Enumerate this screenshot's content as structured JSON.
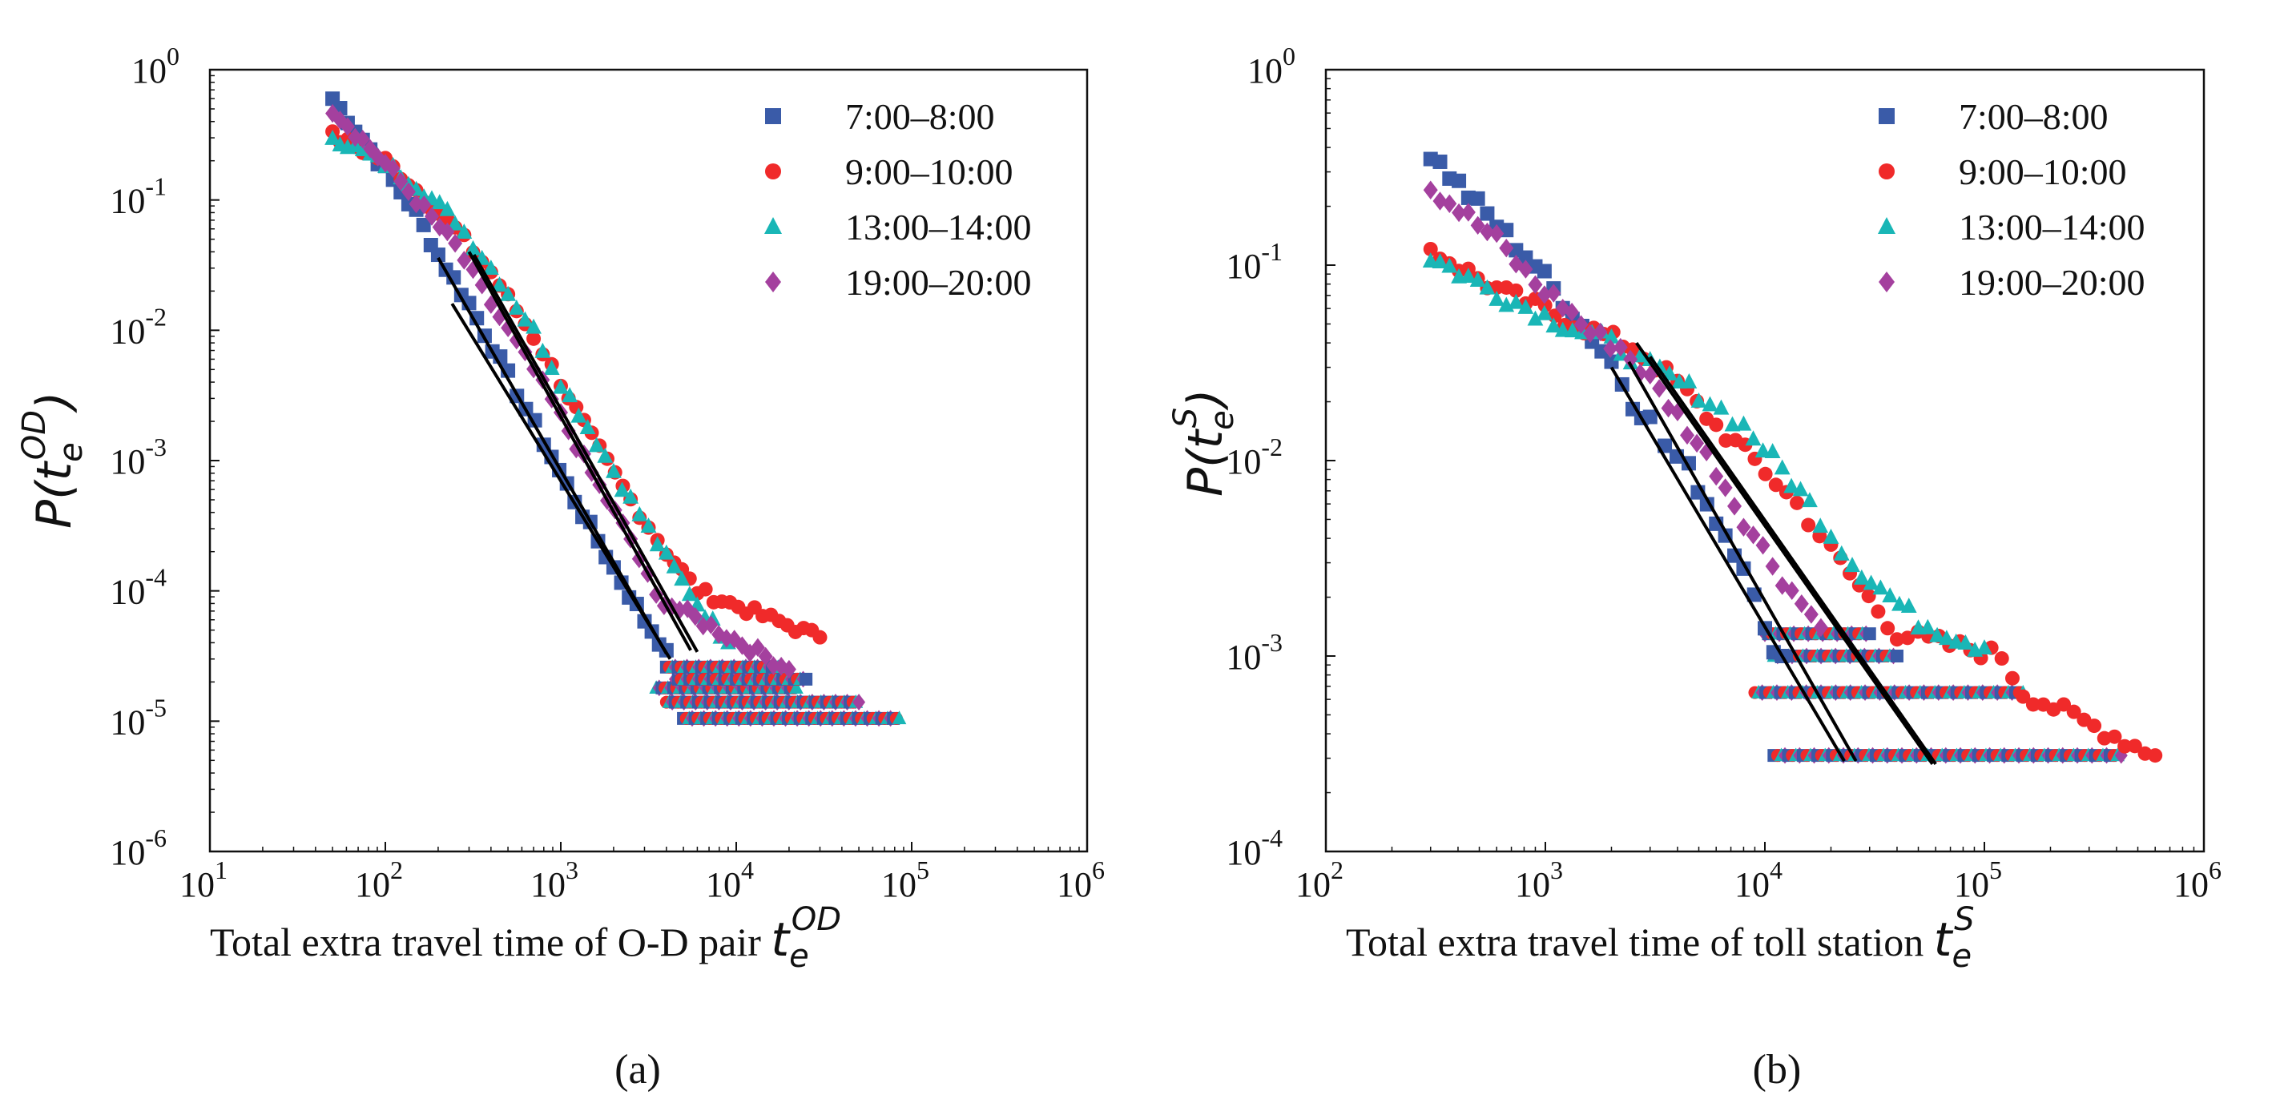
{
  "figure": {
    "caption_a": "(a)",
    "caption_b": "(b)"
  },
  "chart_data": [
    {
      "id": "a",
      "type": "scatter",
      "log_x": true,
      "log_y": true,
      "xlim_exp": [
        1,
        6
      ],
      "ylim_exp": [
        -6,
        0
      ],
      "x_tick_exponents": [
        "1",
        "2",
        "3",
        "4",
        "5",
        "6"
      ],
      "y_tick_exponents": [
        "0",
        "-1",
        "-2",
        "-3",
        "-4",
        "-5",
        "-6"
      ],
      "tick_base": "10",
      "xlabel_text": "Total extra travel time of O-D pair ",
      "xlabel_symbol": "t",
      "xlabel_sub": "e",
      "xlabel_sup": "OD",
      "ylabel_symbol": "P(t",
      "ylabel_sub": "e",
      "ylabel_sup": "OD",
      "ylabel_close": ")",
      "legend_position": "top-right",
      "series": [
        {
          "name": "7:00–8:00",
          "color": "#3a5ba8",
          "marker": "square",
          "points": [
            [
              50,
              0.6
            ],
            [
              100,
              0.17
            ],
            [
              150,
              0.08
            ],
            [
              200,
              0.038
            ],
            [
              300,
              0.016
            ],
            [
              500,
              0.0045
            ],
            [
              800,
              0.0014
            ],
            [
              1200,
              0.0005
            ],
            [
              2000,
              0.00015
            ],
            [
              3000,
              6e-05
            ],
            [
              4000,
              3.5e-05
            ]
          ],
          "fit": {
            "x1": 200,
            "y1": 0.036,
            "x2": 4000,
            "y2": 3.3e-05
          }
        },
        {
          "name": "9:00–10:00",
          "color": "#f02a2a",
          "marker": "circle",
          "points": [
            [
              50,
              0.31
            ],
            [
              100,
              0.2
            ],
            [
              150,
              0.12
            ],
            [
              250,
              0.06
            ],
            [
              400,
              0.028
            ],
            [
              700,
              0.009
            ],
            [
              1000,
              0.004
            ],
            [
              1500,
              0.0015
            ],
            [
              2500,
              0.0005
            ],
            [
              4000,
              0.0002
            ],
            [
              6000,
              0.0001
            ],
            [
              30000,
              4.4e-05
            ]
          ],
          "fit": {
            "x1": 320,
            "y1": 0.038,
            "x2": 6000,
            "y2": 3.4e-05
          }
        },
        {
          "name": "13:00–14:00",
          "color": "#19b6b6",
          "marker": "triangle",
          "points": [
            [
              50,
              0.31
            ],
            [
              100,
              0.19
            ],
            [
              150,
              0.13
            ],
            [
              250,
              0.07
            ],
            [
              400,
              0.03
            ],
            [
              700,
              0.01
            ],
            [
              1000,
              0.004
            ],
            [
              1600,
              0.0014
            ],
            [
              2500,
              0.0005
            ],
            [
              4000,
              0.00018
            ],
            [
              6000,
              8e-05
            ],
            [
              9000,
              4e-05
            ]
          ],
          "fit": {
            "x1": 300,
            "y1": 0.04,
            "x2": 5500,
            "y2": 3.5e-05
          }
        },
        {
          "name": "19:00–20:00",
          "color": "#a4409e",
          "marker": "diamond",
          "points": [
            [
              50,
              0.5
            ],
            [
              100,
              0.19
            ],
            [
              150,
              0.1
            ],
            [
              250,
              0.045
            ],
            [
              400,
              0.016
            ],
            [
              700,
              0.005
            ],
            [
              1000,
              0.0022
            ],
            [
              1500,
              0.0008
            ],
            [
              2500,
              0.00025
            ],
            [
              3500,
              9e-05
            ],
            [
              20000,
              2.5e-05
            ]
          ],
          "fit": {
            "x1": 240,
            "y1": 0.016,
            "x2": 4200,
            "y2": 3e-05
          }
        }
      ],
      "floor_bands": [
        {
          "y": 1.05e-05,
          "x_from": 5000,
          "x_to": 85000
        },
        {
          "y": 1.4e-05,
          "x_from": 4000,
          "x_to": 50000
        },
        {
          "y": 1.8e-05,
          "x_from": 3500,
          "x_to": 22000
        },
        {
          "y": 2.1e-05,
          "x_from": 4500,
          "x_to": 25000
        },
        {
          "y": 2.6e-05,
          "x_from": 4000,
          "x_to": 18000
        }
      ]
    },
    {
      "id": "b",
      "type": "scatter",
      "log_x": true,
      "log_y": true,
      "xlim_exp": [
        2,
        6
      ],
      "ylim_exp": [
        -4,
        0
      ],
      "x_tick_exponents": [
        "2",
        "3",
        "4",
        "5",
        "6"
      ],
      "y_tick_exponents": [
        "0",
        "-1",
        "-2",
        "-3",
        "-4"
      ],
      "tick_base": "10",
      "xlabel_text": "Total extra travel time of toll station ",
      "xlabel_symbol": "t",
      "xlabel_sub": "e",
      "xlabel_sup": "S",
      "ylabel_symbol": "P(t",
      "ylabel_sub": "e",
      "ylabel_sup": "S",
      "ylabel_close": ")",
      "legend_position": "top-right",
      "series": [
        {
          "name": "7:00–8:00",
          "color": "#3a5ba8",
          "marker": "square",
          "points": [
            [
              300,
              0.37
            ],
            [
              600,
              0.16
            ],
            [
              900,
              0.1
            ],
            [
              1200,
              0.065
            ],
            [
              2000,
              0.032
            ],
            [
              2500,
              0.02
            ],
            [
              3000,
              0.016
            ],
            [
              3500,
              0.012
            ],
            [
              4500,
              0.009
            ],
            [
              6000,
              0.005
            ],
            [
              8000,
              0.003
            ],
            [
              10000,
              0.0013
            ],
            [
              12000,
              0.001
            ]
          ],
          "fit": {
            "x1": 2000,
            "y1": 0.03,
            "x2": 23000,
            "y2": 0.00029
          }
        },
        {
          "name": "9:00–10:00",
          "color": "#f02a2a",
          "marker": "circle",
          "points": [
            [
              300,
              0.12
            ],
            [
              600,
              0.075
            ],
            [
              900,
              0.062
            ],
            [
              1500,
              0.048
            ],
            [
              2500,
              0.038
            ],
            [
              4000,
              0.025
            ],
            [
              6000,
              0.015
            ],
            [
              9000,
              0.01
            ],
            [
              14000,
              0.006
            ],
            [
              20000,
              0.0035
            ],
            [
              40000,
              0.0013
            ],
            [
              120000,
              0.001
            ],
            [
              150000,
              0.00065
            ],
            [
              600000,
              0.00031
            ]
          ],
          "fit": {
            "x1": 2600,
            "y1": 0.04,
            "x2": 58000,
            "y2": 0.00028
          }
        },
        {
          "name": "13:00–14:00",
          "color": "#19b6b6",
          "marker": "triangle",
          "points": [
            [
              300,
              0.11
            ],
            [
              600,
              0.072
            ],
            [
              900,
              0.058
            ],
            [
              1200,
              0.05
            ],
            [
              2000,
              0.04
            ],
            [
              3000,
              0.03
            ],
            [
              5000,
              0.022
            ],
            [
              8000,
              0.015
            ],
            [
              12000,
              0.009
            ],
            [
              16000,
              0.006
            ],
            [
              25000,
              0.003
            ],
            [
              50000,
              0.0015
            ],
            [
              100000,
              0.0011
            ]
          ],
          "fit": {
            "x1": 3000,
            "y1": 0.034,
            "x2": 60000,
            "y2": 0.00028
          }
        },
        {
          "name": "19:00–20:00",
          "color": "#a4409e",
          "marker": "diamond",
          "points": [
            [
              300,
              0.25
            ],
            [
              600,
              0.135
            ],
            [
              900,
              0.08
            ],
            [
              1200,
              0.063
            ],
            [
              1600,
              0.045
            ],
            [
              2200,
              0.038
            ],
            [
              3000,
              0.026
            ],
            [
              4000,
              0.017
            ],
            [
              6000,
              0.009
            ],
            [
              8000,
              0.005
            ],
            [
              12000,
              0.0025
            ],
            [
              18000,
              0.0014
            ]
          ],
          "fit": {
            "x1": 2400,
            "y1": 0.032,
            "x2": 26000,
            "y2": 0.00029
          }
        }
      ],
      "floor_bands": [
        {
          "y": 0.00031,
          "x_from": 11000,
          "x_to": 420000
        },
        {
          "y": 0.00065,
          "x_from": 9000,
          "x_to": 150000
        },
        {
          "y": 0.001,
          "x_from": 11000,
          "x_to": 40000
        },
        {
          "y": 0.0013,
          "x_from": 10000,
          "x_to": 30000
        }
      ]
    }
  ]
}
